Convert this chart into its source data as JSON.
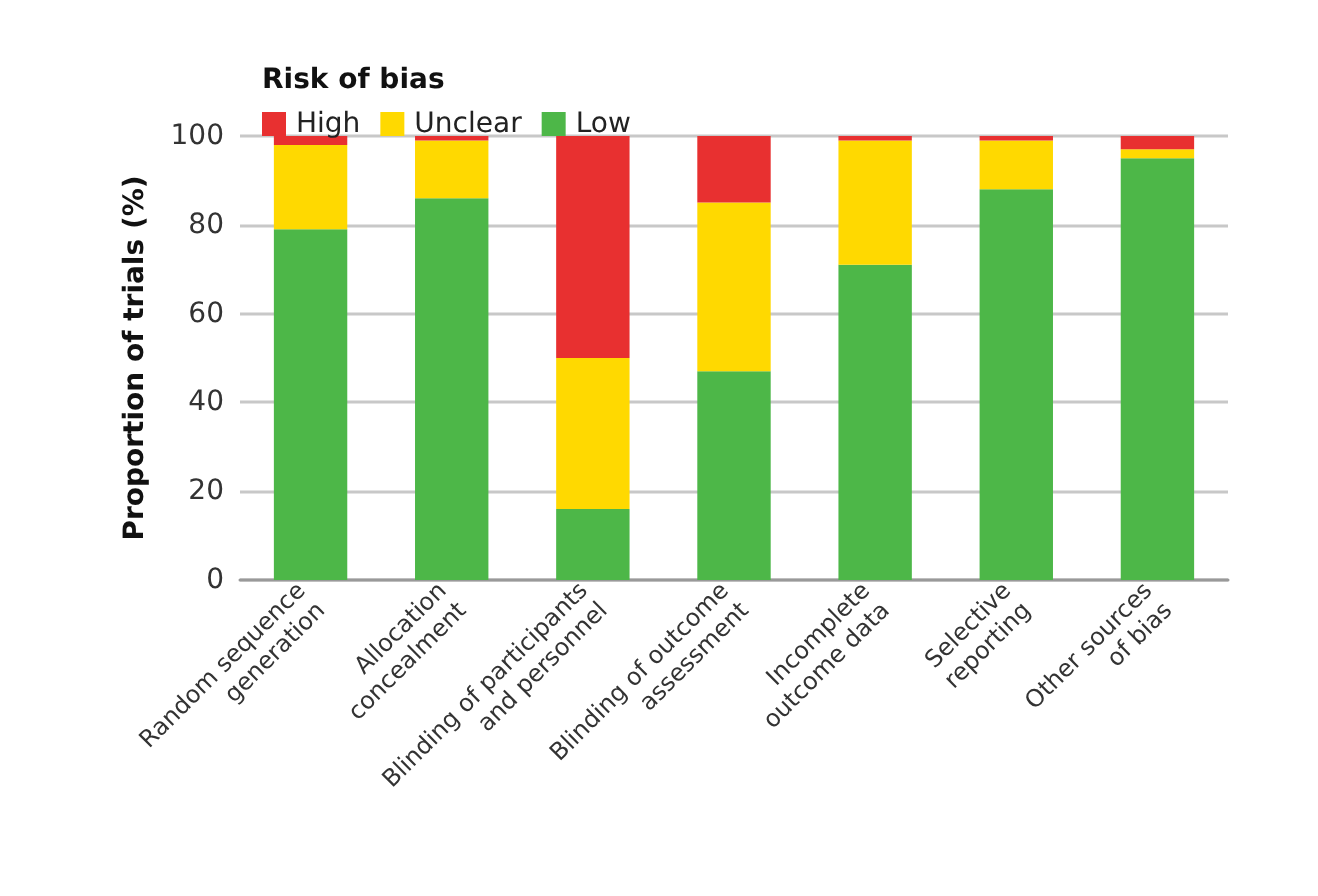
{
  "chart_data": {
    "type": "bar",
    "stacked": true,
    "ylabel": "Proportion of trials (%)",
    "legend_title": "Risk of bias",
    "legend": "top left",
    "grid": "y",
    "categories": [
      "Random sequence\ngeneration",
      "Allocation\nconcealment",
      "Blinding of participants\nand personnel",
      "Blinding of outcome\nassessment",
      "Incomplete\noutcome data",
      "Selective\nreporting",
      "Other sources\nof bias"
    ],
    "series": [
      {
        "name": "Low",
        "color": "#4db748",
        "values": [
          79,
          86,
          16,
          47,
          71,
          88,
          95
        ]
      },
      {
        "name": "Unclear",
        "color": "#ffd900",
        "values": [
          19,
          13,
          34,
          38,
          28,
          11,
          2
        ]
      },
      {
        "name": "High",
        "color": "#e83030",
        "values": [
          2,
          1,
          50,
          15,
          1,
          1,
          3
        ]
      }
    ],
    "ylim": [
      0,
      100
    ],
    "yticks": [
      0,
      20,
      40,
      60,
      80,
      100
    ]
  }
}
